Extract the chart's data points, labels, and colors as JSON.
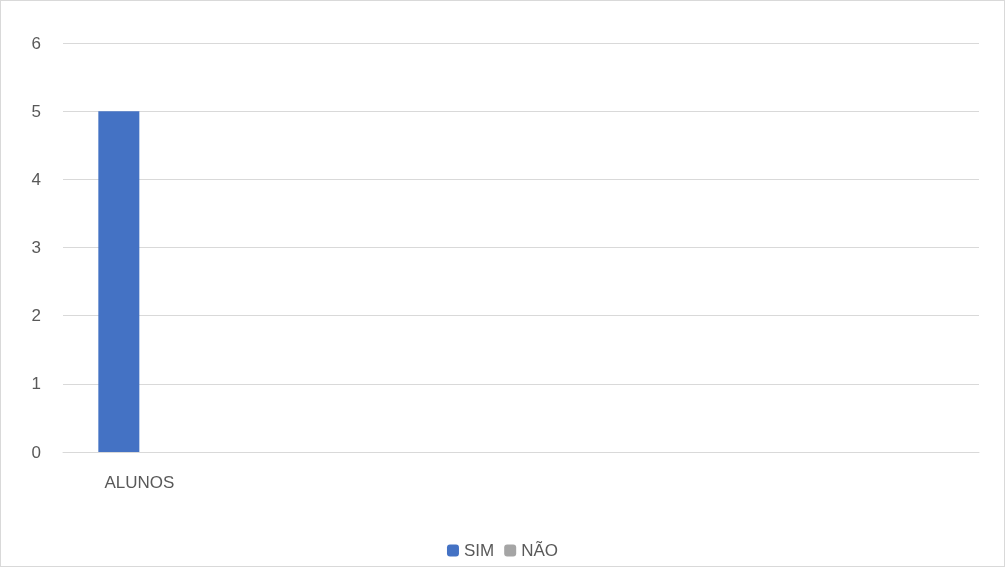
{
  "chart_data": {
    "type": "bar",
    "categories": [
      "ALUNOS",
      null,
      null,
      null,
      null,
      null
    ],
    "series": [
      {
        "name": "SIM",
        "color": "#4472c4",
        "values": [
          5,
          null,
          null,
          null,
          null,
          null
        ]
      },
      {
        "name": "NÃO",
        "color": "#a5a5a5",
        "values": [
          0,
          null,
          null,
          null,
          null,
          null
        ]
      }
    ],
    "ylim": [
      0,
      6
    ],
    "yticks": [
      0,
      1,
      2,
      3,
      4,
      5,
      6
    ],
    "grid": "y",
    "legend": "bottom"
  }
}
